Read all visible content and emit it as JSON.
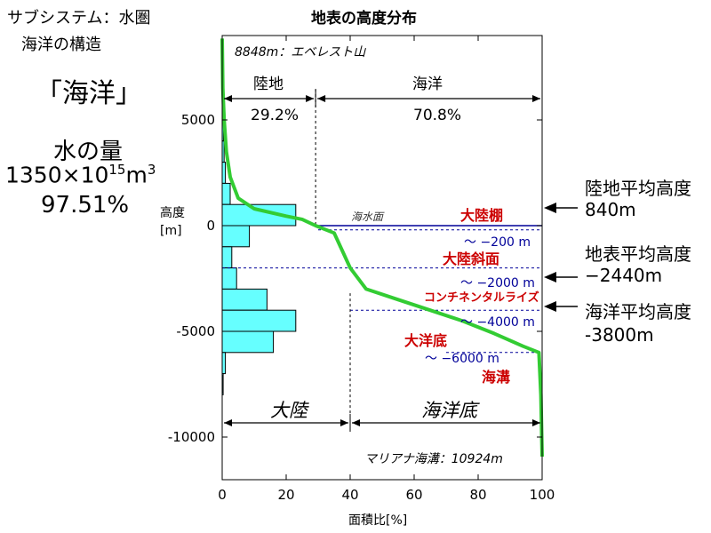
{
  "slide": {
    "subsystem": "サブシステム：水圏",
    "subtitle": "海洋の構造",
    "big_title": "「海洋」",
    "amount_label": "水の量",
    "amount_base": "1350×10",
    "amount_exp": "15",
    "amount_unit": "m",
    "amount_unit_exp": "3",
    "amount_pct": "97.51%"
  },
  "side_labels": {
    "land_mean_label": "陸地平均高度",
    "land_mean_value": "840m",
    "surface_mean_label": "地表平均高度",
    "surface_mean_value": "−2440m",
    "ocean_mean_label": "海洋平均高度",
    "ocean_mean_value": "-3800m"
  },
  "chart_data": {
    "type": "line",
    "title": "地表の高度分布",
    "xlabel": "面積比[%]",
    "ylabel": "高度\n[m]",
    "xlim": [
      0,
      100
    ],
    "ylim": [
      -11500,
      9000
    ],
    "xticks": [
      0,
      20,
      40,
      60,
      80,
      100
    ],
    "yticks": [
      5000,
      0,
      -5000,
      -10000
    ],
    "curve": {
      "name": "hypsometric",
      "color": "#33cc33",
      "points": [
        [
          0,
          8848
        ],
        [
          0.2,
          6500
        ],
        [
          0.6,
          5000
        ],
        [
          1.3,
          3500
        ],
        [
          2.5,
          2300
        ],
        [
          5,
          1300
        ],
        [
          10,
          800
        ],
        [
          20,
          450
        ],
        [
          25,
          300
        ],
        [
          29.2,
          0
        ],
        [
          35,
          -350
        ],
        [
          40,
          -2000
        ],
        [
          45,
          -3000
        ],
        [
          55,
          -3500
        ],
        [
          65,
          -4000
        ],
        [
          75,
          -4500
        ],
        [
          85,
          -5100
        ],
        [
          94,
          -5700
        ],
        [
          99,
          -6000
        ],
        [
          99.6,
          -8000
        ],
        [
          100,
          -10924
        ]
      ]
    },
    "histogram": {
      "color": "#66ffff",
      "bars": [
        {
          "from": 8000,
          "to": 7000,
          "value": 0.3
        },
        {
          "from": 7000,
          "to": 6000,
          "value": 0.3
        },
        {
          "from": 6000,
          "to": 5000,
          "value": 0.4
        },
        {
          "from": 5000,
          "to": 4000,
          "value": 0.4
        },
        {
          "from": 4000,
          "to": 3000,
          "value": 0.6
        },
        {
          "from": 3000,
          "to": 2000,
          "value": 1.0
        },
        {
          "from": 2000,
          "to": 1000,
          "value": 2.5
        },
        {
          "from": 1000,
          "to": 0,
          "value": 23
        },
        {
          "from": 0,
          "to": -1000,
          "value": 8.5
        },
        {
          "from": -1000,
          "to": -2000,
          "value": 3
        },
        {
          "from": -2000,
          "to": -3000,
          "value": 4.5
        },
        {
          "from": -3000,
          "to": -4000,
          "value": 14
        },
        {
          "from": -4000,
          "to": -5000,
          "value": 23
        },
        {
          "from": -5000,
          "to": -6000,
          "value": 16
        },
        {
          "from": -6000,
          "to": -7000,
          "value": 1
        },
        {
          "from": -7000,
          "to": -8000,
          "value": 0.3
        }
      ]
    },
    "land_pct_value": 29.2,
    "continent_boundary": 40,
    "sea_level_line_color": "#000099",
    "depth_lines": [
      -200,
      -2000,
      -4000,
      -6000
    ],
    "top_annotation": "8848m：エベレスト山",
    "bottom_annotation": "マリアナ海溝：10924m",
    "land_label": "陸地",
    "ocean_label": "海洋",
    "land_pct": "29.2%",
    "ocean_pct": "70.8%",
    "continent_label": "大陸",
    "ocean_floor_label": "海洋底",
    "sea_surface_label": "海水面",
    "zones": {
      "shelf": "大陸棚",
      "slope": "大陸斜面",
      "rise": "コンチネンタルライズ",
      "floor": "大洋底",
      "trench": "海溝"
    },
    "depth_labels": {
      "d200": "～ −200 m",
      "d2000": "～ −2000 m",
      "d4000": "～ −4000 m",
      "d6000": "～ −6000 m"
    },
    "accent_red": "#cc0000",
    "accent_blue": "#000099"
  }
}
